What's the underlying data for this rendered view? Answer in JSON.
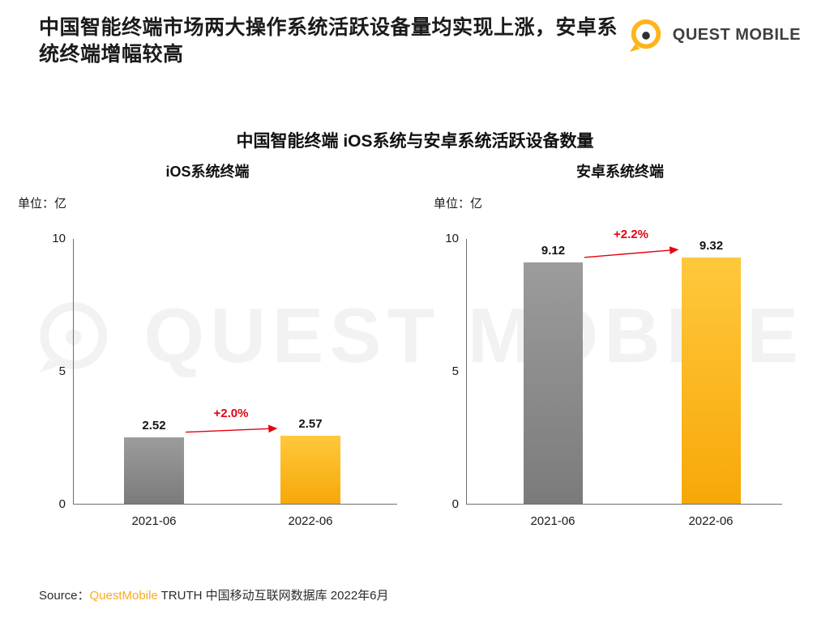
{
  "header": {
    "title": "中国智能终端市场两大操作系统活跃设备量均实现上涨，安卓系统终端增幅较高",
    "logo_text": "QUEST MOBILE"
  },
  "chart_data": {
    "type": "bar",
    "title": "中国智能终端 iOS系统与安卓系统活跃设备数量",
    "unit_label": "单位：亿",
    "ylim": [
      0,
      10
    ],
    "yticks": [
      "10",
      "5",
      "0"
    ],
    "grid": false,
    "legend_position": "none",
    "colors": {
      "bar_previous": "#8c8c8c",
      "bar_current": "#fbb116",
      "growth": "#e60012"
    },
    "panels": [
      {
        "subtitle": "iOS系统终端",
        "categories": [
          "2021-06",
          "2022-06"
        ],
        "values": [
          2.52,
          2.57
        ],
        "growth_label": "+2.0%"
      },
      {
        "subtitle": "安卓系统终端",
        "categories": [
          "2021-06",
          "2022-06"
        ],
        "values": [
          9.12,
          9.32
        ],
        "growth_label": "+2.2%"
      }
    ]
  },
  "watermark": {
    "text": "QUEST MOBILE"
  },
  "footer": {
    "prefix": "Source：",
    "brand": "QuestMobile",
    "rest": " TRUTH 中国移动互联网数据库 2022年6月"
  }
}
